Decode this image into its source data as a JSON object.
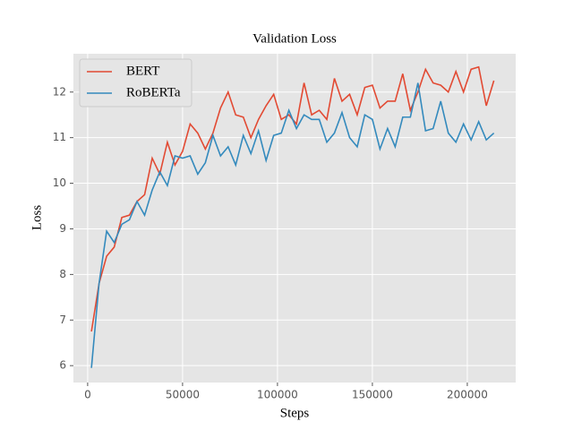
{
  "chart_data": {
    "type": "line",
    "title": "Validation Loss",
    "x_label": "Steps",
    "y_label": "Loss",
    "x": [
      2000,
      6000,
      10000,
      14000,
      18000,
      22000,
      26000,
      30000,
      34000,
      38000,
      42000,
      46000,
      50000,
      54000,
      58000,
      62000,
      66000,
      70000,
      74000,
      78000,
      82000,
      86000,
      90000,
      94000,
      98000,
      102000,
      106000,
      110000,
      114000,
      118000,
      122000,
      126000,
      130000,
      134000,
      138000,
      142000,
      146000,
      150000,
      154000,
      158000,
      162000,
      166000,
      170000,
      174000,
      178000,
      182000,
      186000,
      190000,
      194000,
      198000,
      202000,
      206000,
      210000,
      214000
    ],
    "series": [
      {
        "name": "BERT",
        "color": "#E24A33",
        "values": [
          6.75,
          7.8,
          8.4,
          8.6,
          9.25,
          9.3,
          9.6,
          9.75,
          10.55,
          10.2,
          10.9,
          10.4,
          10.7,
          11.3,
          11.1,
          10.75,
          11.1,
          11.65,
          12.0,
          11.5,
          11.45,
          11.0,
          11.4,
          11.7,
          11.95,
          11.4,
          11.5,
          11.3,
          12.2,
          11.5,
          11.6,
          11.4,
          12.3,
          11.8,
          11.95,
          11.5,
          12.1,
          12.15,
          11.65,
          11.8,
          11.8,
          12.4,
          11.6,
          12.0,
          12.5,
          12.2,
          12.15,
          12.0,
          12.45,
          12.0,
          12.5,
          12.55,
          11.7,
          12.25
        ]
      },
      {
        "name": "RoBERTa",
        "color": "#348ABD",
        "values": [
          5.95,
          7.8,
          8.95,
          8.7,
          9.1,
          9.2,
          9.6,
          9.3,
          9.85,
          10.25,
          9.95,
          10.6,
          10.55,
          10.6,
          10.2,
          10.45,
          11.05,
          10.6,
          10.8,
          10.4,
          11.05,
          10.65,
          11.15,
          10.5,
          11.05,
          11.1,
          11.6,
          11.2,
          11.5,
          11.4,
          11.4,
          10.9,
          11.1,
          11.55,
          11.0,
          10.8,
          11.5,
          11.4,
          10.75,
          11.2,
          10.8,
          11.45,
          11.45,
          12.2,
          11.15,
          11.2,
          11.8,
          11.1,
          10.9,
          11.3,
          10.95,
          11.35,
          10.95,
          11.1
        ]
      }
    ],
    "xlim": [
      -7500,
      225500
    ],
    "xticks": [
      0,
      50000,
      100000,
      150000,
      200000
    ],
    "ylim": [
      5.63,
      12.84
    ],
    "yticks": [
      6,
      7,
      8,
      9,
      10,
      11,
      12
    ],
    "grid": true,
    "legend": "upper left"
  }
}
